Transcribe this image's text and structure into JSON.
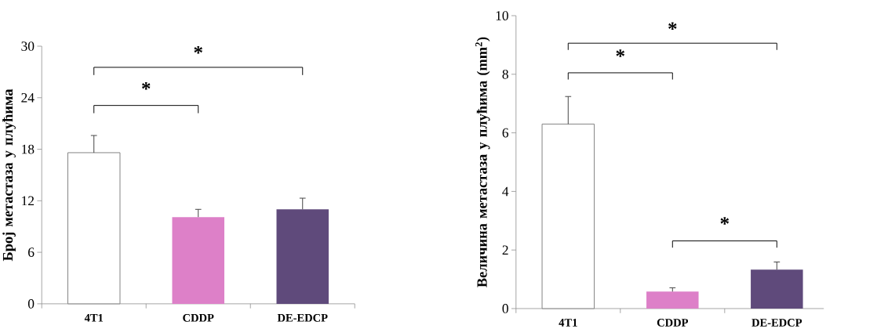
{
  "chart_data": [
    {
      "type": "bar",
      "ylabel": "Број метастаза у плућима",
      "categories": [
        "4T1",
        "CDDP",
        "DE-EDCP"
      ],
      "values": [
        17.6,
        10.1,
        11.0
      ],
      "errors": [
        [
          17.6,
          19.6
        ],
        [
          10.1,
          11.0
        ],
        [
          11.0,
          12.3
        ]
      ],
      "colors": [
        "#ffffff",
        "#dd80c8",
        "#5f4a7b"
      ],
      "ylim": [
        0,
        30
      ],
      "yticks": [
        0,
        6,
        12,
        18,
        24,
        30
      ],
      "annotations": [
        "*",
        "*"
      ]
    },
    {
      "type": "bar",
      "ylabel": "Величина метастаза у плућима (mm$^{2}$)",
      "categories": [
        "4T1",
        "CDDP",
        "DE-EDCP"
      ],
      "values": [
        6.3,
        0.58,
        1.33
      ],
      "errors": [
        [
          6.3,
          7.24
        ],
        [
          0.58,
          0.71
        ],
        [
          1.33,
          1.59
        ]
      ],
      "colors": [
        "#ffffff",
        "#dd80c8",
        "#5f4a7b"
      ],
      "ylim": [
        0,
        10
      ],
      "yticks": [
        0,
        2,
        4,
        6,
        8,
        10
      ],
      "annotations": [
        "*",
        "*",
        "*"
      ]
    }
  ]
}
